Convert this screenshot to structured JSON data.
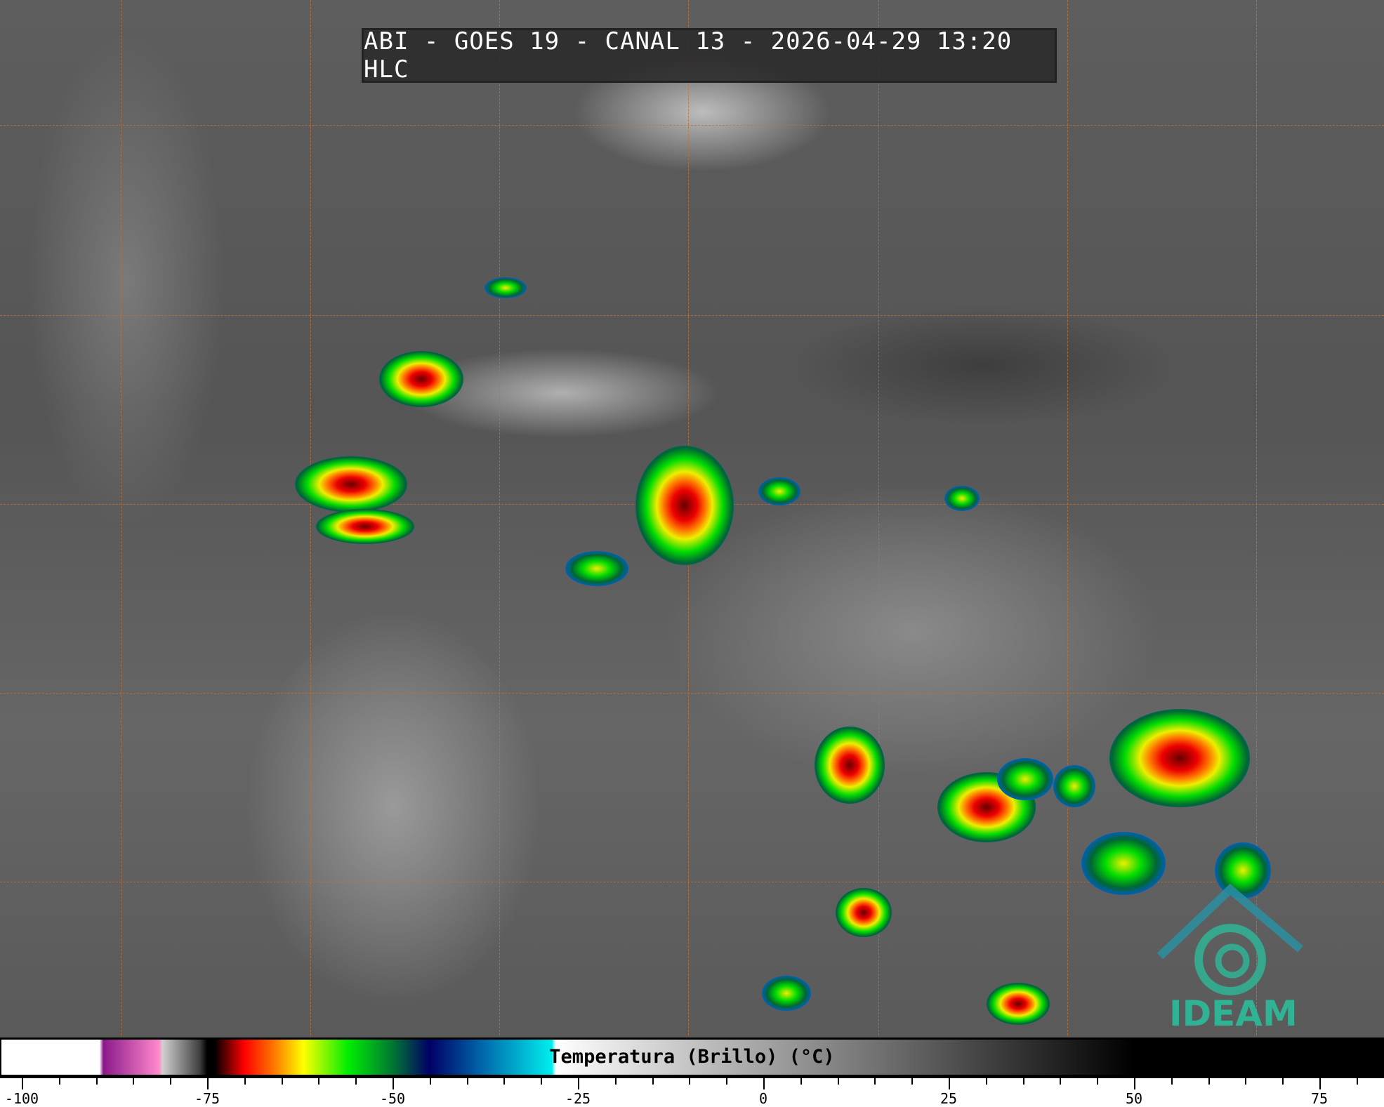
{
  "title": "ABI - GOES 19 - CANAL 13 - 2026-04-29 13:20 HLC",
  "colorbar": {
    "label": "Temperatura (Brillo) (°C)",
    "range": [
      -100,
      85
    ],
    "major_ticks": [
      "-100",
      "-75",
      "-50",
      "-25",
      "0",
      "25",
      "50",
      "75"
    ],
    "stops": [
      {
        "value": -100,
        "color": "#ffffff"
      },
      {
        "value": -89.5,
        "color": "#ffffff"
      },
      {
        "value": -89,
        "color": "#8a1a8a"
      },
      {
        "value": -81.5,
        "color": "#ff88cc"
      },
      {
        "value": -81,
        "color": "#d0d0d0"
      },
      {
        "value": -76,
        "color": "#404040"
      },
      {
        "value": -75,
        "color": "#000000"
      },
      {
        "value": -74,
        "color": "#000000"
      },
      {
        "value": -70,
        "color": "#ff0000"
      },
      {
        "value": -66,
        "color": "#ff7700"
      },
      {
        "value": -62,
        "color": "#ffff00"
      },
      {
        "value": -56,
        "color": "#00ee00"
      },
      {
        "value": -50,
        "color": "#007733"
      },
      {
        "value": -45,
        "color": "#000066"
      },
      {
        "value": -38,
        "color": "#0066aa"
      },
      {
        "value": -28.5,
        "color": "#00eeee"
      },
      {
        "value": -28,
        "color": "#ffffff"
      },
      {
        "value": 50,
        "color": "#000000"
      },
      {
        "value": 85,
        "color": "#000000"
      }
    ]
  },
  "logo": {
    "text": "IDEAM",
    "color": "#2fb394"
  }
}
